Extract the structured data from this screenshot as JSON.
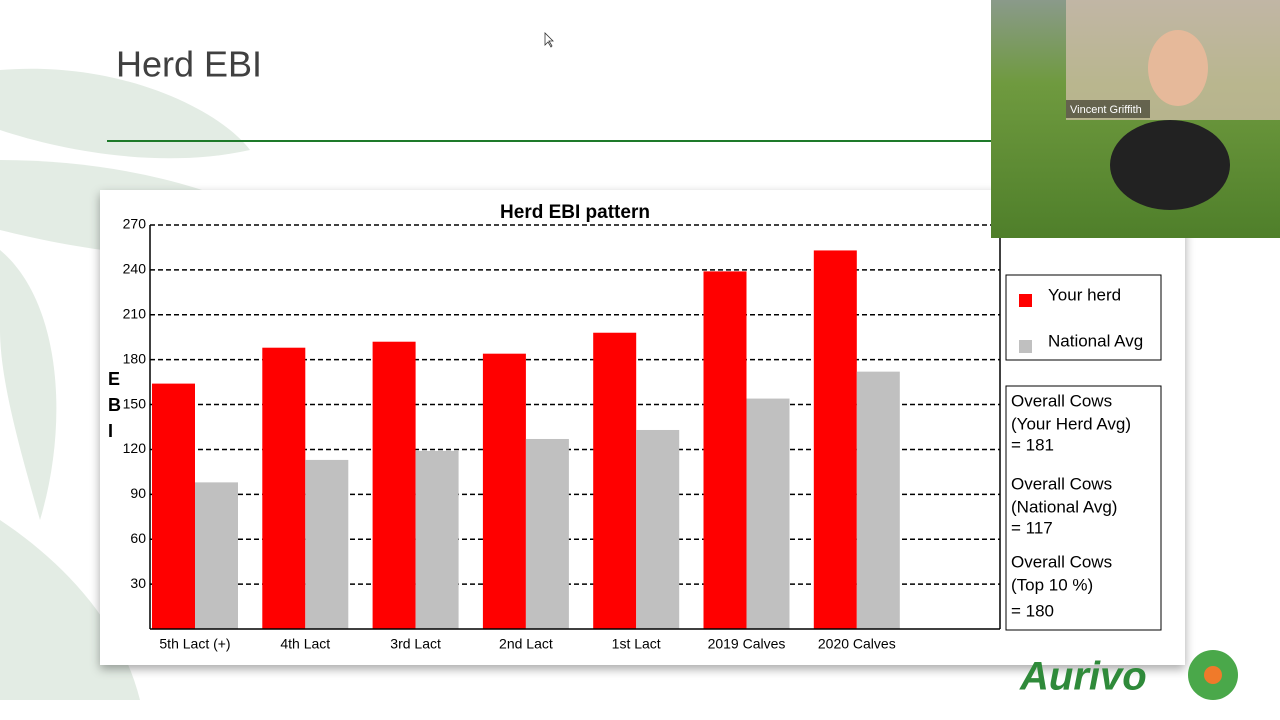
{
  "slide": {
    "title": "Herd EBI",
    "logo": "Aurivo"
  },
  "video": {
    "participant": "Vincent Griffith"
  },
  "chart_data": {
    "type": "bar",
    "title": "Herd EBI pattern",
    "y_label": "EBI",
    "categories": [
      "5th Lact (+)",
      "4th Lact",
      "3rd Lact",
      "2nd Lact",
      "1st Lact",
      "2019 Calves",
      "2020 Calves"
    ],
    "series": [
      {
        "name": "Your herd",
        "color": "#ff0000",
        "values": [
          164,
          188,
          192,
          184,
          198,
          239,
          253
        ]
      },
      {
        "name": "National Avg",
        "color": "#c0c0c0",
        "values": [
          98,
          113,
          119,
          127,
          133,
          154,
          172
        ]
      }
    ],
    "ylim": [
      0,
      270
    ],
    "yticks": [
      30,
      60,
      90,
      120,
      150,
      180,
      210,
      240,
      270
    ],
    "grid": true,
    "annotations": [
      [
        "Overall Cows",
        "(Your Herd Avg)",
        "= 181"
      ],
      [
        "Overall Cows",
        "(National Avg)",
        "= 117"
      ],
      [
        "Overall Cows",
        "(Top 10 %)",
        "= 180"
      ]
    ]
  }
}
